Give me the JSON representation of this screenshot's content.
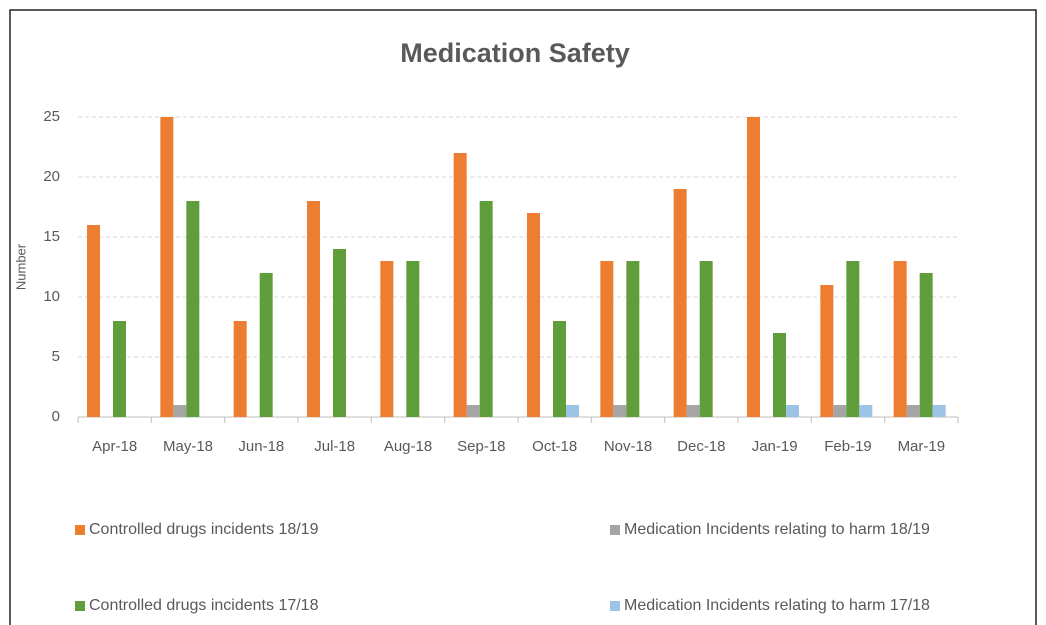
{
  "chart_data": {
    "type": "bar",
    "title": "Medication Safety",
    "y_label": "Number",
    "categories": [
      "Apr-18",
      "May-18",
      "Jun-18",
      "Jul-18",
      "Aug-18",
      "Sep-18",
      "Oct-18",
      "Nov-18",
      "Dec-18",
      "Jan-19",
      "Feb-19",
      "Mar-19"
    ],
    "series": [
      {
        "name": "Controlled drugs incidents 18/19",
        "color": "#ed7d31",
        "values": [
          16,
          25,
          8,
          18,
          13,
          22,
          17,
          13,
          19,
          25,
          11,
          13
        ]
      },
      {
        "name": "Medication Incidents relating to harm 18/19",
        "color": "#a5a5a5",
        "values": [
          0,
          1,
          0,
          0,
          0,
          1,
          0,
          1,
          1,
          0,
          1,
          1
        ]
      },
      {
        "name": "Controlled drugs incidents 17/18",
        "color": "#5f9e3a",
        "values": [
          8,
          18,
          12,
          14,
          13,
          18,
          8,
          13,
          13,
          7,
          13,
          12
        ]
      },
      {
        "name": "Medication Incidents relating to harm 17/18",
        "color": "#9dc3e6",
        "values": [
          0,
          0,
          0,
          0,
          0,
          0,
          1,
          0,
          0,
          1,
          1,
          1
        ]
      }
    ],
    "ylim": [
      0,
      25
    ],
    "yticks": [
      0,
      5,
      10,
      15,
      20,
      25
    ],
    "grid": true,
    "legend": "bottom"
  }
}
